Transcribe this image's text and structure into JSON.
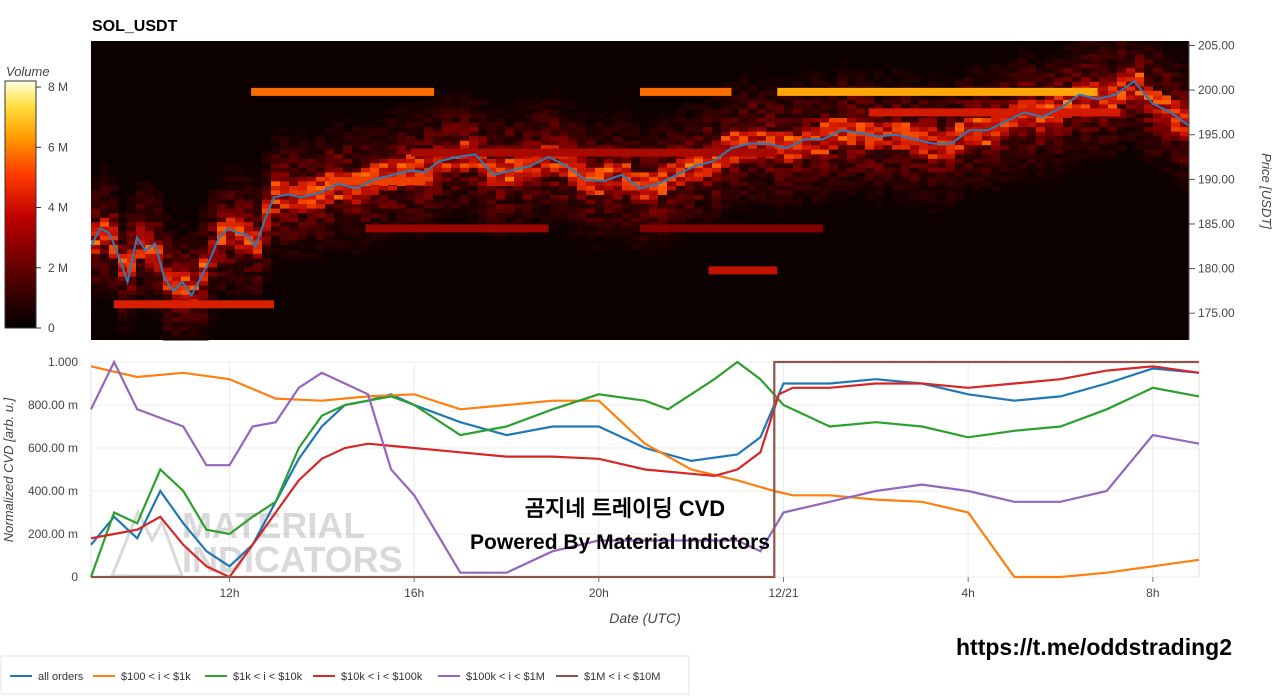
{
  "chart_data": [
    {
      "type": "heatmap",
      "title": "SOL_USDT",
      "ylabel": "Price [USDT]",
      "y_ticks": [
        "205.00",
        "200.00",
        "195.00",
        "190.00",
        "185.00",
        "180.00",
        "175.00"
      ],
      "y_tick_values": [
        205,
        200,
        195,
        190,
        185,
        180,
        175
      ],
      "ylim": [
        172,
        205.5
      ],
      "colorbar": {
        "label": "Volume",
        "ticks": [
          "8 M",
          "6 M",
          "4 M",
          "2 M",
          "0"
        ],
        "tick_values": [
          8,
          6,
          4,
          2,
          0
        ],
        "range": [
          0,
          8.2
        ]
      },
      "colorscale": [
        "#000000",
        "#3a0000",
        "#8c0000",
        "#d51a00",
        "#ff5a00",
        "#ff9f00",
        "#ffe040",
        "#ffffe0"
      ],
      "price_line_color": "#2b7bba",
      "price_series": {
        "hours": [
          9.0,
          9.2,
          9.4,
          9.6,
          9.8,
          10.0,
          10.2,
          10.4,
          10.6,
          10.8,
          11.0,
          11.2,
          11.4,
          11.6,
          11.8,
          12.0,
          12.2,
          12.4,
          12.6,
          12.8,
          13.0,
          13.3,
          13.6,
          14.0,
          14.4,
          14.8,
          15.2,
          15.6,
          16.0,
          16.3,
          16.6,
          17.0,
          17.4,
          17.8,
          18.2,
          18.6,
          19.0,
          19.4,
          19.8,
          20.2,
          20.6,
          21.0,
          21.4,
          21.8,
          22.2,
          22.6,
          23.0,
          23.4,
          23.8,
          24.2,
          24.6,
          25.0,
          25.4,
          25.8,
          26.2,
          26.6,
          27.0,
          27.4,
          27.8,
          28.2,
          28.6,
          29.0,
          29.4,
          29.8,
          30.2,
          30.6,
          31.0,
          31.4,
          31.8,
          32.2,
          32.6,
          33.0
        ],
        "price": [
          182.5,
          184.5,
          184.0,
          181.5,
          178.5,
          183.5,
          182.0,
          182.8,
          179.0,
          177.5,
          178.5,
          177.0,
          179.0,
          181.0,
          183.5,
          184.5,
          184.0,
          183.8,
          182.5,
          185.5,
          188.0,
          188.3,
          188.0,
          188.5,
          189.5,
          189.0,
          190.0,
          190.5,
          191.0,
          190.8,
          192.0,
          192.5,
          192.8,
          190.5,
          191.0,
          191.5,
          192.5,
          191.5,
          190.0,
          189.8,
          190.5,
          189.0,
          189.5,
          190.5,
          191.5,
          192.0,
          193.5,
          194.0,
          194.0,
          193.5,
          194.5,
          194.5,
          195.5,
          195.2,
          194.8,
          195.0,
          194.5,
          194.0,
          194.0,
          195.5,
          195.5,
          196.5,
          197.5,
          197.0,
          198.0,
          199.5,
          199.0,
          199.5,
          201.0,
          198.5,
          197.5,
          196.0
        ]
      },
      "volume_bands": [
        {
          "price": 199.8,
          "from_hours": 12.5,
          "to_hours": 16.5,
          "volume": 5.0
        },
        {
          "price": 199.8,
          "from_hours": 21.0,
          "to_hours": 23.0,
          "volume": 5.0
        },
        {
          "price": 199.8,
          "from_hours": 24.0,
          "to_hours": 31.0,
          "volume": 6.0
        },
        {
          "price": 189.8,
          "from_hours": 14.2,
          "to_hours": 16.3,
          "volume": 4.2
        },
        {
          "price": 184.5,
          "from_hours": 15.0,
          "to_hours": 19.0,
          "volume": 2.6
        },
        {
          "price": 184.5,
          "from_hours": 21.0,
          "to_hours": 25.0,
          "volume": 2.2
        },
        {
          "price": 179.8,
          "from_hours": 22.5,
          "to_hours": 24.0,
          "volume": 3.2
        },
        {
          "price": 176.0,
          "from_hours": 9.5,
          "to_hours": 13.0,
          "volume": 3.6
        },
        {
          "price": 197.5,
          "from_hours": 26.0,
          "to_hours": 31.5,
          "volume": 3.5
        },
        {
          "price": 193.0,
          "from_hours": 16.0,
          "to_hours": 24.0,
          "volume": 2.8
        }
      ]
    },
    {
      "type": "line",
      "xlabel": "Date (UTC)",
      "ylabel": "Normalized CVD [arb. u.]",
      "x_ticks": [
        "12h",
        "16h",
        "20h",
        "12/21",
        "4h",
        "8h"
      ],
      "x_tick_hours": [
        12,
        16,
        20,
        24,
        28,
        32
      ],
      "xlim_hours": [
        9.0,
        33.0
      ],
      "y_ticks": [
        "1.000",
        "800.00 m",
        "600.00 m",
        "400.00 m",
        "200.00 m",
        "0"
      ],
      "y_tick_values": [
        1.0,
        0.8,
        0.6,
        0.4,
        0.2,
        0.0
      ],
      "ylim": [
        0,
        1
      ],
      "legend_position": "bottom",
      "series": [
        {
          "name": "all orders",
          "color": "#1f77b4",
          "x": [
            9.0,
            9.5,
            10.0,
            10.5,
            11.0,
            11.5,
            12.0,
            12.5,
            13.0,
            13.5,
            14.0,
            14.5,
            15.0,
            15.5,
            16.0,
            17.0,
            18.0,
            19.0,
            20.0,
            21.0,
            22.0,
            23.0,
            23.5,
            24.0,
            25.0,
            26.0,
            27.0,
            28.0,
            29.0,
            30.0,
            31.0,
            32.0,
            33.0
          ],
          "y": [
            0.15,
            0.28,
            0.18,
            0.4,
            0.25,
            0.12,
            0.05,
            0.15,
            0.35,
            0.55,
            0.7,
            0.8,
            0.82,
            0.85,
            0.8,
            0.72,
            0.66,
            0.7,
            0.7,
            0.6,
            0.54,
            0.57,
            0.65,
            0.9,
            0.9,
            0.92,
            0.9,
            0.85,
            0.82,
            0.84,
            0.9,
            0.97,
            0.95
          ]
        },
        {
          "name": "$100 < i < $1k",
          "color": "#ff7f0e",
          "x": [
            9.0,
            10.0,
            11.0,
            12.0,
            13.0,
            14.0,
            15.0,
            16.0,
            17.0,
            18.0,
            19.0,
            20.0,
            21.0,
            22.0,
            23.0,
            23.8,
            24.2,
            25.0,
            26.0,
            27.0,
            28.0,
            29.0,
            30.0,
            31.0,
            32.0,
            33.0
          ],
          "y": [
            0.98,
            0.93,
            0.95,
            0.92,
            0.83,
            0.82,
            0.84,
            0.85,
            0.78,
            0.8,
            0.82,
            0.82,
            0.62,
            0.5,
            0.45,
            0.4,
            0.38,
            0.38,
            0.36,
            0.35,
            0.3,
            0.0,
            0.0,
            0.02,
            0.05,
            0.08
          ]
        },
        {
          "name": "$1k < i < $10k",
          "color": "#2ca02c",
          "x": [
            9.0,
            9.5,
            10.0,
            10.5,
            11.0,
            11.5,
            12.0,
            12.5,
            13.0,
            13.5,
            14.0,
            14.5,
            15.0,
            15.5,
            16.0,
            17.0,
            18.0,
            19.0,
            20.0,
            21.0,
            21.5,
            22.0,
            22.5,
            23.0,
            23.5,
            24.0,
            25.0,
            26.0,
            27.0,
            28.0,
            29.0,
            30.0,
            31.0,
            32.0,
            33.0
          ],
          "y": [
            0.0,
            0.3,
            0.25,
            0.5,
            0.4,
            0.22,
            0.2,
            0.28,
            0.35,
            0.6,
            0.75,
            0.8,
            0.82,
            0.84,
            0.8,
            0.66,
            0.7,
            0.78,
            0.85,
            0.82,
            0.78,
            0.85,
            0.92,
            1.0,
            0.92,
            0.8,
            0.7,
            0.72,
            0.7,
            0.65,
            0.68,
            0.7,
            0.78,
            0.88,
            0.84
          ]
        },
        {
          "name": "$10k < i < $100k",
          "color": "#d62728",
          "x": [
            9.0,
            9.5,
            10.0,
            10.5,
            11.0,
            11.5,
            12.0,
            12.5,
            13.0,
            13.5,
            14.0,
            14.5,
            15.0,
            16.0,
            17.0,
            18.0,
            19.0,
            20.0,
            21.0,
            22.0,
            22.5,
            23.0,
            23.5,
            23.9,
            24.2,
            25.0,
            26.0,
            27.0,
            28.0,
            29.0,
            30.0,
            31.0,
            32.0,
            33.0
          ],
          "y": [
            0.18,
            0.2,
            0.22,
            0.28,
            0.15,
            0.05,
            0.0,
            0.15,
            0.3,
            0.45,
            0.55,
            0.6,
            0.62,
            0.6,
            0.58,
            0.56,
            0.56,
            0.55,
            0.5,
            0.48,
            0.47,
            0.5,
            0.58,
            0.85,
            0.88,
            0.88,
            0.9,
            0.9,
            0.88,
            0.9,
            0.92,
            0.96,
            0.98,
            0.95
          ]
        },
        {
          "name": "$100k < i < $1M",
          "color": "#9467bd",
          "x": [
            9.0,
            9.5,
            10.0,
            10.5,
            11.0,
            11.5,
            12.0,
            12.5,
            13.0,
            13.5,
            14.0,
            14.5,
            15.0,
            15.5,
            16.0,
            16.5,
            17.0,
            18.0,
            19.0,
            20.0,
            21.0,
            22.0,
            23.0,
            23.5,
            24.0,
            25.0,
            26.0,
            27.0,
            28.0,
            29.0,
            30.0,
            31.0,
            32.0,
            33.0
          ],
          "y": [
            0.78,
            1.0,
            0.78,
            0.74,
            0.7,
            0.52,
            0.52,
            0.7,
            0.72,
            0.88,
            0.95,
            0.9,
            0.85,
            0.5,
            0.38,
            0.2,
            0.02,
            0.02,
            0.12,
            0.17,
            0.17,
            0.17,
            0.17,
            0.12,
            0.3,
            0.35,
            0.4,
            0.43,
            0.4,
            0.35,
            0.35,
            0.4,
            0.66,
            0.62
          ]
        },
        {
          "name": "$1M < i < $10M",
          "color": "#8c564b",
          "x": [
            9.0,
            23.8,
            23.8,
            33.0
          ],
          "y": [
            0.0,
            0.0,
            1.0,
            1.0
          ]
        }
      ]
    }
  ],
  "annotations": {
    "overlay_title": "곰지네 트레이딩 CVD",
    "overlay_subtitle": "Powered By Material Indictors",
    "watermark": "MATERIAL INDICATORS",
    "telegram_link": "https://t.me/oddstrading2"
  }
}
